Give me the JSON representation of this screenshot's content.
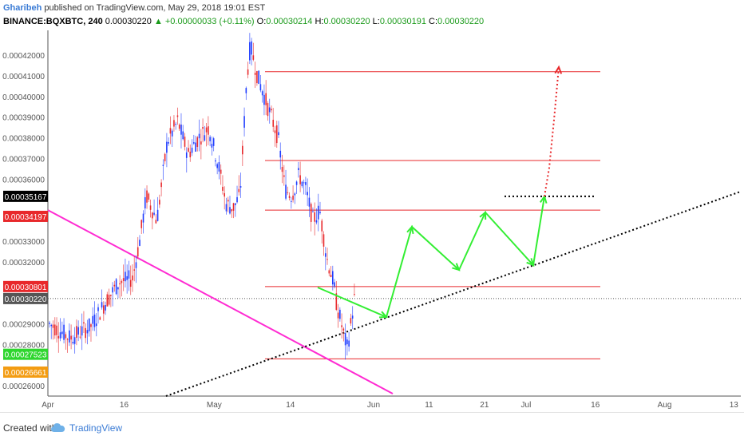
{
  "header": {
    "author": "Gharibeh",
    "published_text": "published on TradingView.com, May 29, 2018 19:01 EST",
    "symbol": "BINANCE:BQXBTC, 240",
    "last": "0.00030220",
    "change": "▲ +0.00000033 (+0.11%)",
    "o_label": "O:",
    "o_value": "0.00030214",
    "h_label": "H:",
    "h_value": "0.00030220",
    "l_label": "L:",
    "l_value": "0.00030191",
    "c_label": "C:",
    "c_value": "0.00030220"
  },
  "footer": {
    "created_with": "Created with",
    "brand": "TradingView",
    "brand_icon": "cloud-icon"
  },
  "chart_data": {
    "type": "candlestick",
    "y_min": 0.000255,
    "y_max": 0.000432,
    "y_ticks": [
      {
        "value": 0.00042,
        "label": "0.00042000"
      },
      {
        "value": 0.00041,
        "label": "0.00041000"
      },
      {
        "value": 0.0004,
        "label": "0.00040000"
      },
      {
        "value": 0.00039,
        "label": "0.00039000"
      },
      {
        "value": 0.00038,
        "label": "0.00038000"
      },
      {
        "value": 0.00037,
        "label": "0.00037000"
      },
      {
        "value": 0.00036,
        "label": "0.00036000"
      },
      {
        "value": 0.00033,
        "label": "0.00033000"
      },
      {
        "value": 0.00032,
        "label": "0.00032000"
      },
      {
        "value": 0.00029,
        "label": "0.00029000"
      },
      {
        "value": 0.00028,
        "label": "0.00028000"
      },
      {
        "value": 0.00026,
        "label": "0.00026000"
      }
    ],
    "price_badges": [
      {
        "value": 0.00035167,
        "label": "0.00035167",
        "color": "#000000"
      },
      {
        "value": 0.00034197,
        "label": "0.00034197",
        "color": "#e8282b"
      },
      {
        "value": 0.00030801,
        "label": "0.00030801",
        "color": "#e8282b"
      },
      {
        "value": 0.0003022,
        "label": "0.00030220",
        "color": "#555555"
      },
      {
        "value": 0.00027523,
        "label": "0.00027523",
        "color": "#2ed62e"
      },
      {
        "value": 0.00026661,
        "label": "0.00026661",
        "color": "#f39c12"
      }
    ],
    "x_ticks": [
      {
        "pos": 0.0,
        "label": "Apr"
      },
      {
        "pos": 0.11,
        "label": "16"
      },
      {
        "pos": 0.24,
        "label": "May"
      },
      {
        "pos": 0.35,
        "label": "14"
      },
      {
        "pos": 0.47,
        "label": "Jun"
      },
      {
        "pos": 0.55,
        "label": "11"
      },
      {
        "pos": 0.63,
        "label": "21"
      },
      {
        "pos": 0.69,
        "label": "Jul"
      },
      {
        "pos": 0.79,
        "label": "16"
      },
      {
        "pos": 0.89,
        "label": "Aug"
      },
      {
        "pos": 0.99,
        "label": "13"
      }
    ],
    "resistance_levels": [
      0.000412,
      0.000369,
      0.000345,
      0.000308,
      0.000273
    ],
    "last_price": 0.0003022,
    "colors": {
      "up": "#1e3cff",
      "down": "#e8282b",
      "projection": "#33ee33",
      "trendline": "#ff2bd2",
      "levels": "#e8282b"
    }
  }
}
